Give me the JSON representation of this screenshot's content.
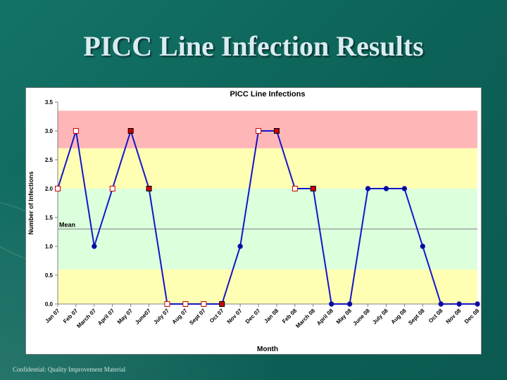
{
  "slide": {
    "title": "PICC Line Infection Results",
    "footer": "Confidential: Quality Improvement Material"
  },
  "colors": {
    "band_red": "#ffb6b6",
    "band_yellow": "#ffffb4",
    "band_green": "#dcffdc",
    "line": "#1414c8",
    "marker_white": "#ffffff",
    "marker_red": "#cc0000",
    "marker_blue": "#0a0a8c",
    "mean_line": "#808080"
  },
  "chart_data": {
    "type": "line",
    "title": "PICC Line Infections",
    "xlabel": "Month",
    "ylabel": "Number of Infections",
    "ylim": [
      0,
      3.5
    ],
    "yticks": [
      "0.0",
      "0.5",
      "1.0",
      "1.5",
      "2.0",
      "2.5",
      "3.0",
      "3.5"
    ],
    "grid": false,
    "categories": [
      "Jan 07",
      "Feb 07",
      "March 07",
      "April 07",
      "May 07",
      "June07",
      "July 07",
      "Aug 07",
      "Sept 07",
      "Oct 07",
      "Nov 07",
      "Dec 07",
      "Jan 08",
      "Feb 08",
      "March 08",
      "April 08",
      "May 08",
      "June 08",
      "July 08",
      "Aug 08",
      "Sept 08",
      "Oct 08",
      "Nov 08",
      "Dec 08"
    ],
    "values": [
      2,
      3,
      1,
      2,
      3,
      2,
      0,
      0,
      0,
      0,
      1,
      3,
      3,
      2,
      2,
      0,
      0,
      2,
      2,
      2,
      1,
      0,
      0,
      0
    ],
    "marker_styles": [
      "white",
      "white",
      "blue",
      "white",
      "red",
      "red",
      "white",
      "white",
      "white",
      "red",
      "blue",
      "white",
      "red",
      "white",
      "red",
      "blue",
      "blue",
      "blue",
      "blue",
      "blue",
      "blue",
      "blue",
      "blue",
      "blue"
    ],
    "mean": {
      "label": "Mean",
      "value": 1.3
    },
    "bands": [
      {
        "from": 0,
        "to": 0.6,
        "color": "yellow"
      },
      {
        "from": 0.6,
        "to": 2.0,
        "color": "green"
      },
      {
        "from": 2.0,
        "to": 2.7,
        "color": "yellow"
      },
      {
        "from": 2.7,
        "to": 3.35,
        "color": "red"
      }
    ]
  }
}
